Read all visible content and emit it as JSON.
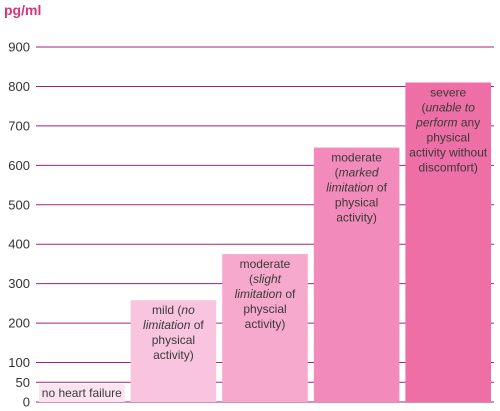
{
  "chart_data": {
    "type": "bar",
    "ylabel": "pg/ml",
    "ylim": [
      0,
      900
    ],
    "yticks": [
      0,
      50,
      100,
      200,
      300,
      400,
      500,
      600,
      700,
      800,
      900
    ],
    "grid": true,
    "categories": [
      "no heart failure",
      "mild (no limitation of physical activity)",
      "moderate (slight limitation of physcial activity)",
      "moderate (marked limitation of physical activity)",
      "severe (unable to perform any physical activity without discomfort)"
    ],
    "values": [
      45,
      258,
      375,
      645,
      810
    ],
    "bar_labels": [
      [
        [
          [
            "no heart failure",
            false
          ]
        ]
      ],
      [
        [
          [
            "mild (",
            false
          ],
          [
            "no",
            true
          ]
        ],
        [
          [
            "limitation",
            true
          ],
          [
            " of",
            false
          ]
        ],
        [
          [
            "physical",
            false
          ]
        ],
        [
          [
            "activity)",
            false
          ]
        ]
      ],
      [
        [
          [
            "moderate",
            false
          ]
        ],
        [
          [
            "(",
            false
          ],
          [
            "slight",
            true
          ]
        ],
        [
          [
            "limitation",
            true
          ],
          [
            " of",
            false
          ]
        ],
        [
          [
            "physcial",
            false
          ]
        ],
        [
          [
            "activity)",
            false
          ]
        ]
      ],
      [
        [
          [
            "moderate",
            false
          ]
        ],
        [
          [
            "(",
            false
          ],
          [
            "marked",
            true
          ]
        ],
        [
          [
            "limitation",
            true
          ],
          [
            " of",
            false
          ]
        ],
        [
          [
            "physical",
            false
          ]
        ],
        [
          [
            "activity)",
            false
          ]
        ]
      ],
      [
        [
          [
            "severe",
            false
          ]
        ],
        [
          [
            "(",
            false
          ],
          [
            "unable to",
            true
          ]
        ],
        [
          [
            "perform",
            true
          ],
          [
            " any",
            false
          ]
        ],
        [
          [
            "physical",
            false
          ]
        ],
        [
          [
            "activity without",
            false
          ]
        ],
        [
          [
            "discomfort)",
            false
          ]
        ]
      ]
    ],
    "colors": {
      "bars": [
        "#fbe3ef",
        "#f9c5de",
        "#f6a9cc",
        "#f28bbb",
        "#ee6ea6"
      ],
      "grid": "#a0237a",
      "accent": "#d6337a"
    }
  }
}
